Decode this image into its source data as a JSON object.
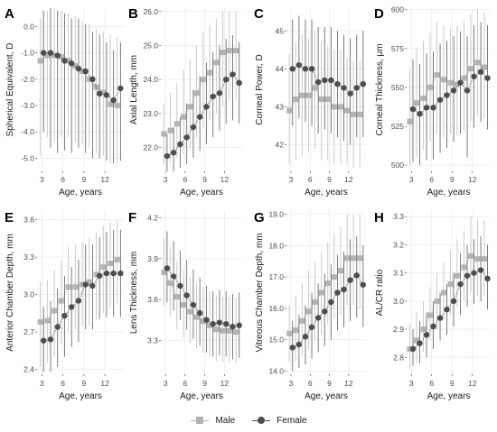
{
  "colors": {
    "male": "#b3b3b3",
    "female": "#4d4d4d",
    "grid": "#ebebeb",
    "male_bar": "#c4c4c4",
    "female_bar": "#6e6e6e"
  },
  "legend": {
    "male_label": "Male",
    "female_label": "Female"
  },
  "chart_data": [
    {
      "type": "line",
      "letter": "A",
      "ylabel": "Spherical Equivalent, D",
      "xlabel": "Age, years",
      "x": [
        3,
        4,
        5,
        6,
        7,
        8,
        9,
        10,
        11,
        12,
        13,
        14
      ],
      "xticks": [
        3,
        6,
        9,
        12
      ],
      "ylim": [
        -5.5,
        0.7
      ],
      "yticks": [
        -5.0,
        -4.0,
        -3.0,
        -2.0,
        -1.0,
        0.0
      ],
      "ytick_labels": [
        "-5.0",
        "-4.0",
        "-3.0",
        "-2.0",
        "-1.0",
        "0.0"
      ],
      "series": [
        {
          "name": "Male",
          "values": [
            -1.3,
            -1.1,
            -1.1,
            -1.15,
            -1.3,
            -1.5,
            -1.7,
            -2.0,
            -2.3,
            -2.5,
            -2.95,
            -3.0
          ],
          "low": [
            -4.9,
            -4.2,
            -4.4,
            -4.2,
            -4.2,
            -4.4,
            -4.5,
            -4.6,
            -4.8,
            -4.9,
            -5.2,
            -5.2
          ],
          "high": [
            0.3,
            0.6,
            0.7,
            0.6,
            0.5,
            0.4,
            0.2,
            0.1,
            -0.1,
            -0.2,
            -0.3,
            -0.4
          ]
        },
        {
          "name": "Female",
          "values": [
            -1.0,
            -1.0,
            -1.1,
            -1.3,
            -1.4,
            -1.6,
            -1.7,
            -2.0,
            -2.55,
            -2.6,
            -2.8,
            -2.35
          ],
          "low": [
            -4.0,
            -4.6,
            -4.8,
            -4.7,
            -4.8,
            -4.6,
            -4.8,
            -5.0,
            -5.0,
            -5.1,
            -5.2,
            -5.1
          ],
          "high": [
            0.6,
            0.7,
            0.6,
            0.5,
            0.3,
            0.3,
            0.1,
            -0.2,
            -0.3,
            -0.6,
            -0.9,
            -0.6
          ]
        }
      ]
    },
    {
      "type": "line",
      "letter": "B",
      "ylabel": "Axial Length, mm",
      "xlabel": "Age, years",
      "x": [
        3,
        4,
        5,
        6,
        7,
        8,
        9,
        10,
        11,
        12,
        13,
        14
      ],
      "xticks": [
        3,
        6,
        9,
        12
      ],
      "ylim": [
        21.3,
        26.1
      ],
      "yticks": [
        22.0,
        23.0,
        24.0,
        25.0,
        26.0
      ],
      "ytick_labels": [
        "22.0",
        "23.0",
        "24.0",
        "25.0",
        "26.0"
      ],
      "series": [
        {
          "name": "Male",
          "values": [
            22.4,
            22.5,
            22.7,
            22.9,
            23.2,
            23.6,
            24.0,
            24.2,
            24.5,
            24.8,
            24.85,
            24.85
          ],
          "low": [
            21.5,
            21.6,
            21.7,
            21.8,
            22.0,
            22.3,
            22.6,
            22.8,
            23.0,
            23.2,
            23.4,
            23.4
          ],
          "high": [
            23.3,
            23.6,
            23.9,
            24.3,
            24.6,
            25.0,
            25.4,
            25.6,
            25.8,
            26.0,
            26.0,
            26.0
          ]
        },
        {
          "name": "Female",
          "values": [
            21.75,
            21.85,
            22.1,
            22.3,
            22.6,
            22.9,
            23.2,
            23.5,
            23.6,
            24.0,
            24.15,
            23.9
          ],
          "low": [
            21.3,
            21.3,
            21.4,
            21.5,
            21.7,
            21.9,
            22.1,
            22.3,
            22.5,
            22.7,
            22.8,
            22.7
          ],
          "high": [
            22.4,
            22.6,
            22.9,
            23.3,
            23.7,
            24.1,
            24.5,
            24.8,
            25.0,
            25.2,
            25.3,
            25.1
          ]
        }
      ]
    },
    {
      "type": "line",
      "letter": "C",
      "ylabel": "Corneal Power, D",
      "xlabel": "Age, years",
      "x": [
        3,
        4,
        5,
        6,
        7,
        8,
        9,
        10,
        11,
        12,
        13,
        14
      ],
      "xticks": [
        3,
        6,
        9,
        12
      ],
      "ylim": [
        41.3,
        45.6
      ],
      "yticks": [
        42,
        43,
        44,
        45
      ],
      "ytick_labels": [
        "42",
        "43",
        "44",
        "45"
      ],
      "series": [
        {
          "name": "Male",
          "values": [
            42.9,
            43.2,
            43.3,
            43.3,
            43.5,
            43.2,
            43.2,
            43.0,
            43.0,
            42.9,
            42.8,
            42.8
          ],
          "low": [
            41.5,
            41.6,
            41.7,
            41.8,
            41.9,
            41.6,
            41.6,
            41.5,
            41.5,
            41.5,
            41.4,
            41.4
          ],
          "high": [
            44.4,
            44.7,
            44.9,
            44.8,
            45.0,
            44.7,
            44.6,
            44.5,
            44.5,
            44.3,
            44.2,
            44.2
          ]
        },
        {
          "name": "Female",
          "values": [
            44.0,
            44.1,
            44.0,
            44.0,
            43.65,
            43.7,
            43.7,
            43.6,
            43.5,
            43.35,
            43.5,
            43.6
          ],
          "low": [
            42.5,
            42.7,
            42.6,
            42.5,
            42.3,
            42.4,
            42.3,
            42.2,
            42.1,
            42.0,
            42.2,
            42.2
          ],
          "high": [
            45.3,
            45.4,
            45.3,
            45.3,
            45.1,
            45.1,
            45.1,
            45.0,
            44.9,
            44.8,
            44.9,
            45.0
          ]
        }
      ]
    },
    {
      "type": "line",
      "letter": "D",
      "ylabel": "Corneal Thickness, μm",
      "xlabel": "Age, years",
      "x": [
        3,
        4,
        5,
        6,
        7,
        8,
        9,
        10,
        11,
        12,
        13,
        14
      ],
      "xticks": [
        3,
        6,
        9,
        12
      ],
      "ylim": [
        496,
        601
      ],
      "yticks": [
        500,
        525,
        550,
        575,
        600
      ],
      "ytick_labels": [
        "500",
        "525",
        "550",
        "575",
        "600"
      ],
      "series": [
        {
          "name": "Male",
          "values": [
            528,
            540,
            543,
            550,
            558,
            555,
            553,
            552,
            556,
            562,
            566,
            563
          ],
          "low": [
            500,
            505,
            510,
            515,
            520,
            518,
            520,
            519,
            522,
            528,
            532,
            530
          ],
          "high": [
            562,
            575,
            580,
            585,
            592,
            590,
            588,
            590,
            592,
            597,
            600,
            598
          ]
        },
        {
          "name": "Female",
          "values": [
            536,
            533,
            537,
            537,
            542,
            545,
            548,
            553,
            548,
            557,
            560,
            556
          ],
          "low": [
            502,
            500,
            503,
            504,
            508,
            511,
            515,
            520,
            505,
            524,
            528,
            523
          ],
          "high": [
            568,
            565,
            572,
            573,
            578,
            580,
            583,
            586,
            583,
            590,
            592,
            590
          ]
        }
      ]
    },
    {
      "type": "line",
      "letter": "E",
      "ylabel": "Anterior Chamber Depth, mm",
      "xlabel": "Age, years",
      "x": [
        3,
        4,
        5,
        6,
        7,
        8,
        9,
        10,
        11,
        12,
        13,
        14
      ],
      "xticks": [
        3,
        6,
        9,
        12
      ],
      "ylim": [
        2.36,
        3.67
      ],
      "yticks": [
        2.4,
        2.7,
        3.0,
        3.3,
        3.6
      ],
      "ytick_labels": [
        "2.4",
        "2.7",
        "3.0",
        "3.3",
        "3.6"
      ],
      "series": [
        {
          "name": "Male",
          "values": [
            2.78,
            2.79,
            2.87,
            2.95,
            3.06,
            3.06,
            3.08,
            3.1,
            3.16,
            3.22,
            3.25,
            3.28
          ],
          "low": [
            2.42,
            2.45,
            2.5,
            2.6,
            2.7,
            2.72,
            2.75,
            2.75,
            2.8,
            2.85,
            2.9,
            2.92
          ],
          "high": [
            3.1,
            3.12,
            3.2,
            3.28,
            3.38,
            3.4,
            3.42,
            3.45,
            3.5,
            3.55,
            3.58,
            3.6
          ]
        },
        {
          "name": "Female",
          "values": [
            2.63,
            2.64,
            2.74,
            2.83,
            2.9,
            2.95,
            3.08,
            3.07,
            3.15,
            3.17,
            3.17,
            3.17
          ],
          "low": [
            2.38,
            2.38,
            2.42,
            2.5,
            2.58,
            2.62,
            2.72,
            2.72,
            2.8,
            2.82,
            2.82,
            2.82
          ],
          "high": [
            2.9,
            2.95,
            3.05,
            3.15,
            3.22,
            3.28,
            3.4,
            3.4,
            3.46,
            3.5,
            3.52,
            3.52
          ]
        }
      ]
    },
    {
      "type": "line",
      "letter": "F",
      "ylabel": "Lens Thickness, mm",
      "xlabel": "Age, years",
      "x": [
        3,
        4,
        5,
        6,
        7,
        8,
        9,
        10,
        11,
        12,
        13,
        14
      ],
      "xticks": [
        3,
        6,
        9,
        12
      ],
      "ylim": [
        3.05,
        4.25
      ],
      "yticks": [
        3.3,
        3.6,
        3.9,
        4.2
      ],
      "ytick_labels": [
        "3.3",
        "3.6",
        "3.9",
        "4.2"
      ],
      "series": [
        {
          "name": "Male",
          "values": [
            3.8,
            3.72,
            3.62,
            3.56,
            3.51,
            3.47,
            3.44,
            3.41,
            3.38,
            3.37,
            3.37,
            3.36
          ],
          "low": [
            3.55,
            3.48,
            3.38,
            3.32,
            3.28,
            3.24,
            3.21,
            3.18,
            3.15,
            3.14,
            3.14,
            3.13
          ],
          "high": [
            4.05,
            3.98,
            3.88,
            3.82,
            3.76,
            3.72,
            3.69,
            3.66,
            3.63,
            3.62,
            3.62,
            3.61
          ]
        },
        {
          "name": "Female",
          "values": [
            3.83,
            3.77,
            3.7,
            3.63,
            3.56,
            3.5,
            3.45,
            3.42,
            3.43,
            3.42,
            3.4,
            3.41
          ],
          "low": [
            3.58,
            3.52,
            3.45,
            3.38,
            3.31,
            3.26,
            3.21,
            3.18,
            3.19,
            3.18,
            3.16,
            3.17
          ],
          "high": [
            4.1,
            4.03,
            3.96,
            3.89,
            3.82,
            3.76,
            3.7,
            3.66,
            3.67,
            3.66,
            3.64,
            3.65
          ]
        }
      ]
    },
    {
      "type": "line",
      "letter": "G",
      "ylabel": "Vitreous Chamber Depth, mm",
      "xlabel": "Age, years",
      "x": [
        3,
        4,
        5,
        6,
        7,
        8,
        9,
        10,
        11,
        12,
        13,
        14
      ],
      "xticks": [
        3,
        6,
        9,
        12
      ],
      "ylim": [
        13.9,
        19.1
      ],
      "yticks": [
        14.0,
        15.0,
        16.0,
        17.0,
        18.0,
        19.0
      ],
      "ytick_labels": [
        "14.0",
        "15.0",
        "16.0",
        "17.0",
        "18.0",
        "19.0"
      ],
      "series": [
        {
          "name": "Male",
          "values": [
            15.2,
            15.3,
            15.6,
            15.9,
            16.2,
            16.5,
            16.8,
            17.0,
            17.2,
            17.6,
            17.6,
            17.6
          ],
          "low": [
            14.3,
            14.3,
            14.5,
            14.7,
            15.0,
            15.2,
            15.5,
            15.7,
            15.8,
            16.1,
            16.1,
            16.0
          ],
          "high": [
            16.1,
            16.4,
            16.8,
            17.2,
            17.5,
            17.8,
            18.1,
            18.4,
            18.6,
            19.0,
            19.0,
            19.0
          ]
        },
        {
          "name": "Female",
          "values": [
            14.75,
            14.85,
            15.1,
            15.4,
            15.7,
            15.9,
            16.2,
            16.5,
            16.6,
            16.9,
            17.05,
            16.75
          ],
          "low": [
            14.0,
            14.1,
            14.2,
            14.4,
            14.6,
            14.8,
            15.0,
            15.3,
            15.4,
            15.6,
            15.7,
            15.4
          ],
          "high": [
            15.6,
            15.8,
            16.1,
            16.5,
            16.8,
            17.1,
            17.4,
            17.7,
            17.8,
            18.2,
            18.3,
            18.0
          ]
        }
      ]
    },
    {
      "type": "line",
      "letter": "H",
      "ylabel": "AL/CR ratio",
      "xlabel": "Age, years",
      "x": [
        3,
        4,
        5,
        6,
        7,
        8,
        9,
        10,
        11,
        12,
        13,
        14
      ],
      "xticks": [
        3,
        6,
        9,
        12
      ],
      "ylim": [
        2.74,
        3.32
      ],
      "yticks": [
        2.8,
        2.9,
        3.0,
        3.1,
        3.2,
        3.3
      ],
      "ytick_labels": [
        "2.8",
        "2.9",
        "3.0",
        "3.1",
        "3.2",
        "3.3"
      ],
      "series": [
        {
          "name": "Male",
          "values": [
            2.83,
            2.86,
            2.9,
            2.95,
            3.0,
            3.03,
            3.06,
            3.09,
            3.12,
            3.16,
            3.15,
            3.15
          ],
          "low": [
            2.76,
            2.78,
            2.82,
            2.86,
            2.9,
            2.93,
            2.95,
            2.98,
            3.0,
            3.03,
            3.02,
            3.02
          ],
          "high": [
            2.92,
            2.96,
            3.0,
            3.05,
            3.1,
            3.14,
            3.18,
            3.22,
            3.25,
            3.3,
            3.29,
            3.29
          ]
        },
        {
          "name": "Female",
          "values": [
            2.83,
            2.85,
            2.88,
            2.91,
            2.94,
            2.97,
            3.0,
            3.06,
            3.09,
            3.1,
            3.11,
            3.08
          ],
          "low": [
            2.77,
            2.78,
            2.8,
            2.83,
            2.86,
            2.88,
            2.91,
            2.95,
            2.98,
            2.99,
            3.0,
            2.97
          ],
          "high": [
            2.9,
            2.93,
            2.96,
            3.0,
            3.03,
            3.06,
            3.1,
            3.17,
            3.2,
            3.22,
            3.23,
            3.2
          ]
        }
      ]
    }
  ]
}
